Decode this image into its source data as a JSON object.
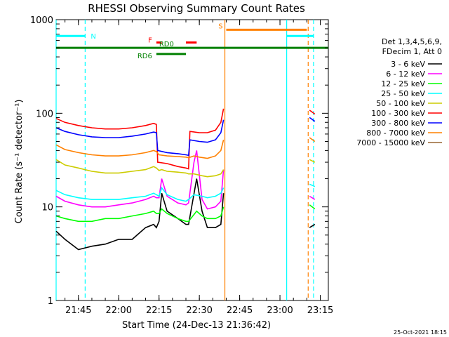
{
  "chart_data": {
    "type": "line",
    "title": "RHESSI Observing Summary Count Rates",
    "xlabel": "Start Time (24-Dec-13 21:36:42)",
    "ylabel": "Count Rate (s⁻¹ detector⁻¹)",
    "y_scale": "log",
    "ylim": [
      1,
      1000
    ],
    "xlim": [
      "21:36:42",
      "23:18:00"
    ],
    "x_ticks": [
      "21:45",
      "22:00",
      "22:15",
      "22:30",
      "22:45",
      "23:00",
      "23:15"
    ],
    "y_ticks": [
      "1",
      "10",
      "100",
      "1000"
    ],
    "legend_header": [
      "Det 1,3,4,5,6,9,",
      "FDecim 1, Att 0"
    ],
    "legend_position": "right",
    "timestamp": "25-Oct-2021 18:15",
    "series": [
      {
        "name": "3 - 6 keV",
        "color": "#000000",
        "points": [
          [
            "21:36:42",
            5.5
          ],
          [
            "21:40",
            4.5
          ],
          [
            "21:45",
            3.5
          ],
          [
            "21:50",
            3.8
          ],
          [
            "21:55",
            4.0
          ],
          [
            "22:00",
            4.5
          ],
          [
            "22:05",
            4.5
          ],
          [
            "22:10",
            6.0
          ],
          [
            "22:13",
            6.5
          ],
          [
            "22:14",
            6.0
          ],
          [
            "22:15",
            7.0
          ],
          [
            "22:16",
            14.0
          ],
          [
            "22:18",
            9.0
          ],
          [
            "22:22",
            7.5
          ],
          [
            "22:25",
            6.5
          ],
          [
            "22:26",
            6.5
          ],
          [
            "22:29",
            20.0
          ],
          [
            "22:31",
            9.0
          ],
          [
            "22:33",
            6.0
          ],
          [
            "22:36",
            6.0
          ],
          [
            "22:38",
            6.5
          ],
          [
            "22:39",
            14.0
          ],
          [
            "22:39:30",
            null
          ],
          [
            "23:11",
            6.0
          ],
          [
            "23:13",
            6.5
          ]
        ]
      },
      {
        "name": "6 - 12 keV",
        "color": "#ff00ff",
        "points": [
          [
            "21:36:42",
            13.0
          ],
          [
            "21:40",
            11.5
          ],
          [
            "21:45",
            10.5
          ],
          [
            "21:50",
            10.0
          ],
          [
            "21:55",
            10.0
          ],
          [
            "22:00",
            10.5
          ],
          [
            "22:05",
            11.0
          ],
          [
            "22:10",
            12.0
          ],
          [
            "22:13",
            13.0
          ],
          [
            "22:14",
            12.5
          ],
          [
            "22:15",
            12.5
          ],
          [
            "22:16",
            20.0
          ],
          [
            "22:18",
            13.0
          ],
          [
            "22:22",
            11.0
          ],
          [
            "22:25",
            10.5
          ],
          [
            "22:26",
            11.0
          ],
          [
            "22:28",
            30.0
          ],
          [
            "22:29",
            40.0
          ],
          [
            "22:31",
            12.0
          ],
          [
            "22:33",
            9.5
          ],
          [
            "22:36",
            10.0
          ],
          [
            "22:38",
            11.5
          ],
          [
            "22:39",
            25.0
          ],
          [
            "22:39:30",
            null
          ],
          [
            "23:11",
            13.0
          ],
          [
            "23:13",
            12.0
          ]
        ]
      },
      {
        "name": "12 - 25 keV",
        "color": "#00ff00",
        "points": [
          [
            "21:36:42",
            8.0
          ],
          [
            "21:40",
            7.5
          ],
          [
            "21:45",
            7.0
          ],
          [
            "21:50",
            7.0
          ],
          [
            "21:55",
            7.5
          ],
          [
            "22:00",
            7.5
          ],
          [
            "22:05",
            8.0
          ],
          [
            "22:10",
            8.5
          ],
          [
            "22:13",
            9.0
          ],
          [
            "22:14",
            8.5
          ],
          [
            "22:15",
            8.5
          ],
          [
            "22:16",
            9.5
          ],
          [
            "22:18",
            8.5
          ],
          [
            "22:22",
            7.5
          ],
          [
            "22:25",
            7.0
          ],
          [
            "22:26",
            7.0
          ],
          [
            "22:29",
            9.0
          ],
          [
            "22:31",
            8.0
          ],
          [
            "22:33",
            7.5
          ],
          [
            "22:36",
            7.5
          ],
          [
            "22:38",
            8.0
          ],
          [
            "22:39",
            10.0
          ],
          [
            "22:39:30",
            null
          ],
          [
            "23:11",
            10.5
          ],
          [
            "23:13",
            9.5
          ]
        ]
      },
      {
        "name": "25 - 50 keV",
        "color": "#00ffff",
        "points": [
          [
            "21:36:42",
            15.0
          ],
          [
            "21:40",
            13.5
          ],
          [
            "21:45",
            12.5
          ],
          [
            "21:50",
            12.0
          ],
          [
            "21:55",
            12.0
          ],
          [
            "22:00",
            12.0
          ],
          [
            "22:05",
            12.5
          ],
          [
            "22:10",
            13.0
          ],
          [
            "22:13",
            14.0
          ],
          [
            "22:14",
            13.5
          ],
          [
            "22:15",
            13.0
          ],
          [
            "22:16",
            16.0
          ],
          [
            "22:18",
            13.5
          ],
          [
            "22:22",
            12.0
          ],
          [
            "22:25",
            11.5
          ],
          [
            "22:26",
            12.0
          ],
          [
            "22:28",
            13.5
          ],
          [
            "22:31",
            13.0
          ],
          [
            "22:33",
            12.5
          ],
          [
            "22:36",
            13.0
          ],
          [
            "22:38",
            14.0
          ],
          [
            "22:39",
            16.0
          ],
          [
            "22:39:30",
            null
          ],
          [
            "23:11",
            17.5
          ],
          [
            "23:13",
            16.5
          ]
        ]
      },
      {
        "name": "50 - 100 keV",
        "color": "#cccc00",
        "points": [
          [
            "21:36:42",
            32.0
          ],
          [
            "21:40",
            28.0
          ],
          [
            "21:45",
            26.0
          ],
          [
            "21:50",
            24.0
          ],
          [
            "21:55",
            23.0
          ],
          [
            "22:00",
            23.0
          ],
          [
            "22:05",
            24.0
          ],
          [
            "22:10",
            25.0
          ],
          [
            "22:13",
            27.0
          ],
          [
            "22:14",
            26.0
          ],
          [
            "22:15",
            24.5
          ],
          [
            "22:16",
            25.0
          ],
          [
            "22:18",
            24.0
          ],
          [
            "22:22",
            23.5
          ],
          [
            "22:25",
            23.0
          ],
          [
            "22:26",
            22.5
          ],
          [
            "22:28",
            22.5
          ],
          [
            "22:31",
            21.5
          ],
          [
            "22:33",
            21.0
          ],
          [
            "22:36",
            21.5
          ],
          [
            "22:38",
            22.5
          ],
          [
            "22:39",
            25.0
          ],
          [
            "22:39:30",
            null
          ],
          [
            "23:11",
            32.0
          ],
          [
            "23:13",
            30.0
          ]
        ]
      },
      {
        "name": "100 - 300 keV",
        "color": "#ff0000",
        "points": [
          [
            "21:36:42",
            88.0
          ],
          [
            "21:40",
            80.0
          ],
          [
            "21:45",
            74.0
          ],
          [
            "21:50",
            70.0
          ],
          [
            "21:55",
            68.0
          ],
          [
            "22:00",
            68.0
          ],
          [
            "22:05",
            70.0
          ],
          [
            "22:10",
            74.0
          ],
          [
            "22:13",
            78.0
          ],
          [
            "22:14",
            76.0
          ],
          [
            "22:14:30",
            30.0
          ],
          [
            "22:18",
            29.0
          ],
          [
            "22:22",
            27.0
          ],
          [
            "22:25",
            26.0
          ],
          [
            "22:26",
            25.5
          ],
          [
            "22:26:30",
            64.0
          ],
          [
            "22:30",
            62.0
          ],
          [
            "22:33",
            62.0
          ],
          [
            "22:36",
            66.0
          ],
          [
            "22:38",
            80.0
          ],
          [
            "22:39",
            112.0
          ],
          [
            "22:39:30",
            null
          ],
          [
            "23:11",
            108.0
          ],
          [
            "23:13",
            98.0
          ]
        ]
      },
      {
        "name": "300 - 800 keV",
        "color": "#0000ff",
        "points": [
          [
            "21:36:42",
            70.0
          ],
          [
            "21:40",
            64.0
          ],
          [
            "21:45",
            59.0
          ],
          [
            "21:50",
            56.0
          ],
          [
            "21:55",
            55.0
          ],
          [
            "22:00",
            55.0
          ],
          [
            "22:05",
            57.0
          ],
          [
            "22:10",
            60.0
          ],
          [
            "22:13",
            63.0
          ],
          [
            "22:14",
            62.0
          ],
          [
            "22:14:30",
            40.0
          ],
          [
            "22:18",
            38.0
          ],
          [
            "22:22",
            37.0
          ],
          [
            "22:25",
            36.0
          ],
          [
            "22:26",
            35.5
          ],
          [
            "22:26:30",
            52.0
          ],
          [
            "22:30",
            50.0
          ],
          [
            "22:33",
            49.0
          ],
          [
            "22:36",
            52.0
          ],
          [
            "22:38",
            62.0
          ],
          [
            "22:39",
            85.0
          ],
          [
            "22:39:30",
            null
          ],
          [
            "23:11",
            90.0
          ],
          [
            "23:13",
            82.0
          ]
        ]
      },
      {
        "name": "800 - 7000 keV",
        "color": "#ff8000",
        "points": [
          [
            "21:36:42",
            46.0
          ],
          [
            "21:40",
            41.0
          ],
          [
            "21:45",
            38.0
          ],
          [
            "21:50",
            36.0
          ],
          [
            "21:55",
            35.0
          ],
          [
            "22:00",
            35.0
          ],
          [
            "22:05",
            36.0
          ],
          [
            "22:10",
            38.0
          ],
          [
            "22:13",
            40.0
          ],
          [
            "22:14",
            39.0
          ],
          [
            "22:15",
            36.0
          ],
          [
            "22:18",
            35.0
          ],
          [
            "22:22",
            34.5
          ],
          [
            "22:25",
            34.0
          ],
          [
            "22:26",
            33.5
          ],
          [
            "22:28",
            35.0
          ],
          [
            "22:30",
            34.0
          ],
          [
            "22:33",
            33.0
          ],
          [
            "22:36",
            35.0
          ],
          [
            "22:38",
            40.0
          ],
          [
            "22:39",
            52.0
          ],
          [
            "22:39:30",
            null
          ],
          [
            "23:11",
            55.0
          ],
          [
            "23:13",
            50.0
          ]
        ]
      },
      {
        "name": "7000 - 15000 keV",
        "color": "#996633",
        "points": []
      }
    ],
    "bars": [
      {
        "label": "N",
        "color": "#00ffff",
        "y": 670,
        "segments": [
          [
            "21:36:42",
            "21:47:30"
          ],
          [
            "23:02:30",
            "23:12:30"
          ]
        ]
      },
      {
        "label": "S",
        "color": "#ff8000",
        "y": 780,
        "segments": [
          [
            "22:40",
            "23:10"
          ]
        ]
      },
      {
        "label": "F",
        "color": "#ff0000",
        "y": 570,
        "segments": [
          [
            "22:14",
            "22:16"
          ],
          [
            "22:25",
            "22:29"
          ]
        ]
      },
      {
        "label": "RD0",
        "color": "#008000",
        "y": 500,
        "segments": [
          [
            "21:36:42",
            "23:18:00"
          ]
        ]
      },
      {
        "label": "RD6",
        "color": "#008000",
        "y": 430,
        "segments": [
          [
            "22:14",
            "22:25"
          ]
        ]
      }
    ],
    "vertical_lines": [
      {
        "time": "21:36:42",
        "color": "#00ffff",
        "dashed": false
      },
      {
        "time": "21:47:30",
        "color": "#00ffff",
        "dashed": true
      },
      {
        "time": "22:39:30",
        "color": "#ff8000",
        "dashed": false
      },
      {
        "time": "23:02:30",
        "color": "#00ffff",
        "dashed": false
      },
      {
        "time": "23:10:30",
        "color": "#ff8000",
        "dashed": true
      },
      {
        "time": "23:12:30",
        "color": "#00ffff",
        "dashed": true
      }
    ]
  }
}
